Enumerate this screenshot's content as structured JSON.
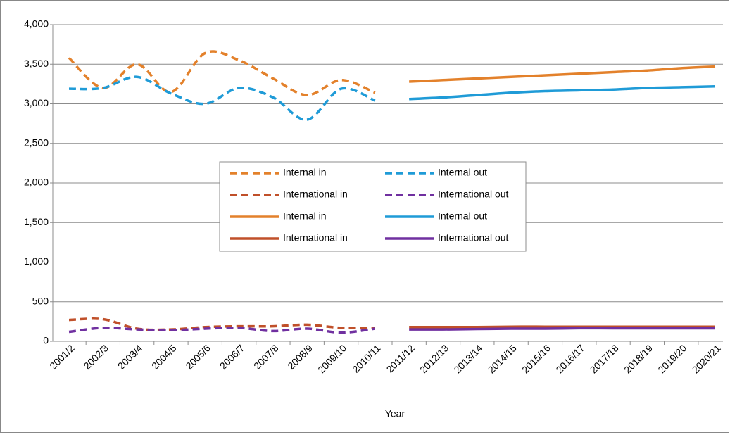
{
  "chart_data": {
    "type": "line",
    "x_label": "Year",
    "categories": [
      "2001/2",
      "2002/3",
      "2003/4",
      "2004/5",
      "2005/6",
      "2006/7",
      "2007/8",
      "2008/9",
      "2009/10",
      "2010/11",
      "2011/12",
      "2012/13",
      "2013/14",
      "2014/15",
      "2015/16",
      "2016/17",
      "2017/18",
      "2018/19",
      "2019/20",
      "2020/21"
    ],
    "ylim": [
      0,
      4000
    ],
    "yticks": [
      0,
      500,
      {
        "value": 1000,
        "label": "1,000"
      },
      {
        "value": 1500,
        "label": "1,500"
      },
      {
        "value": 2000,
        "label": "2,000"
      },
      {
        "value": 2500,
        "label": "2,500"
      },
      {
        "value": 3000,
        "label": "3,000"
      },
      {
        "value": 3500,
        "label": "3,500"
      },
      {
        "value": 4000,
        "label": "4,000"
      }
    ],
    "grid": true,
    "smooth": true,
    "legend": "center",
    "series": [
      {
        "name": "Internal in",
        "color": "#e3812b",
        "dash": "dashed",
        "values": [
          3580,
          3200,
          3500,
          3150,
          3640,
          3550,
          3320,
          3110,
          3300,
          3140,
          null,
          null,
          null,
          null,
          null,
          null,
          null,
          null,
          null,
          null
        ]
      },
      {
        "name": "Internal out",
        "color": "#1f9bd7",
        "dash": "dashed",
        "values": [
          3190,
          3200,
          3340,
          3130,
          3000,
          3200,
          3080,
          2800,
          3190,
          3040,
          null,
          null,
          null,
          null,
          null,
          null,
          null,
          null,
          null,
          null
        ]
      },
      {
        "name": "International in",
        "color": "#c0502a",
        "dash": "dashed",
        "values": [
          270,
          280,
          160,
          150,
          180,
          190,
          190,
          210,
          170,
          170,
          null,
          null,
          null,
          null,
          null,
          null,
          null,
          null,
          null,
          null
        ]
      },
      {
        "name": "International out",
        "color": "#7030a0",
        "dash": "dashed",
        "values": [
          120,
          170,
          150,
          140,
          160,
          170,
          130,
          160,
          110,
          160,
          null,
          null,
          null,
          null,
          null,
          null,
          null,
          null,
          null,
          null
        ]
      },
      {
        "name": "Internal in",
        "color": "#e3812b",
        "dash": "solid",
        "values": [
          null,
          null,
          null,
          null,
          null,
          null,
          null,
          null,
          null,
          null,
          3280,
          3300,
          3320,
          3340,
          3360,
          3380,
          3400,
          3420,
          3450,
          3470
        ]
      },
      {
        "name": "Internal out",
        "color": "#1f9bd7",
        "dash": "solid",
        "values": [
          null,
          null,
          null,
          null,
          null,
          null,
          null,
          null,
          null,
          null,
          3060,
          3080,
          3110,
          3140,
          3160,
          3170,
          3180,
          3200,
          3210,
          3220
        ]
      },
      {
        "name": "International in",
        "color": "#c0502a",
        "dash": "solid",
        "values": [
          null,
          null,
          null,
          null,
          null,
          null,
          null,
          null,
          null,
          null,
          180,
          180,
          180,
          185,
          185,
          185,
          185,
          185,
          185,
          185
        ]
      },
      {
        "name": "International out",
        "color": "#7030a0",
        "dash": "solid",
        "values": [
          null,
          null,
          null,
          null,
          null,
          null,
          null,
          null,
          null,
          null,
          150,
          150,
          155,
          160,
          160,
          165,
          165,
          165,
          165,
          165
        ]
      }
    ]
  }
}
